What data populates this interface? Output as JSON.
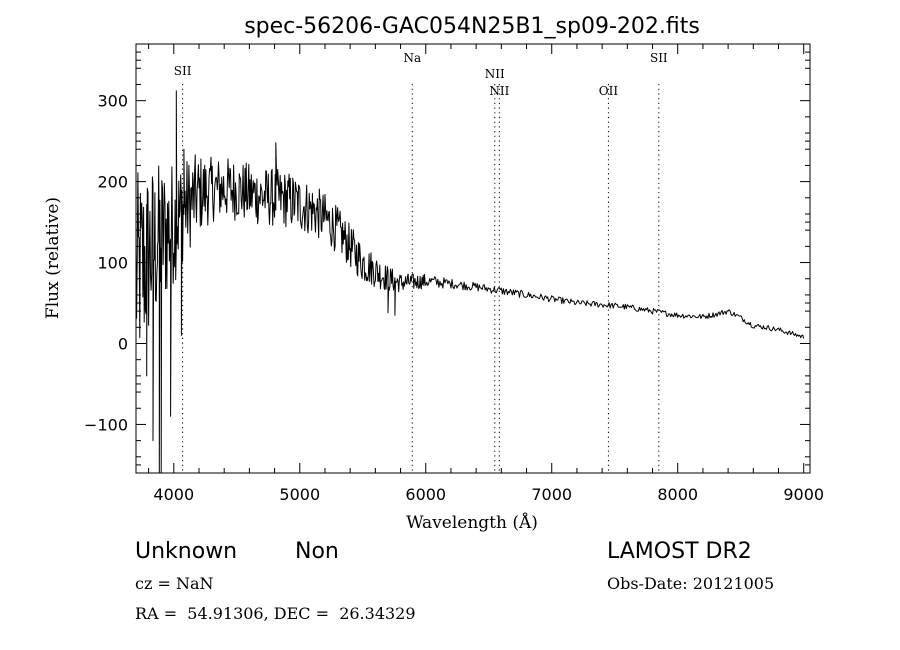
{
  "chart_data": {
    "type": "line",
    "title": "spec-56206-GAC054N25B1_sp09-202.fits",
    "xlabel": "Wavelength (Å)",
    "ylabel": "Flux (relative)",
    "xlim": [
      3700,
      9050
    ],
    "ylim": [
      -160,
      370
    ],
    "x_ticks": [
      4000,
      5000,
      6000,
      7000,
      8000,
      9000
    ],
    "y_ticks": [
      -100,
      0,
      100,
      200,
      300
    ],
    "grid": false,
    "lines": [
      {
        "label": "SII",
        "x": 4070
      },
      {
        "label": "Na",
        "x": 5893
      },
      {
        "label": "NII",
        "x": 6548
      },
      {
        "label": "NII",
        "x": 6584
      },
      {
        "label": "OII",
        "x": 7450
      },
      {
        "label": "SII",
        "x": 7850
      }
    ],
    "spectrum": {
      "name": "flux",
      "anchor_x": [
        3700,
        3800,
        3900,
        4000,
        4100,
        4200,
        4300,
        4400,
        4500,
        4600,
        4700,
        4800,
        4900,
        5000,
        5100,
        5200,
        5300,
        5400,
        5500,
        5600,
        5700,
        5800,
        5900,
        6000,
        6200,
        6400,
        6600,
        6800,
        7000,
        7200,
        7400,
        7600,
        7800,
        8000,
        8200,
        8300,
        8400,
        8500,
        8600,
        8700,
        8800,
        9000
      ],
      "anchor_y": [
        80,
        110,
        130,
        150,
        170,
        185,
        190,
        192,
        190,
        185,
        182,
        180,
        178,
        172,
        165,
        155,
        140,
        120,
        100,
        90,
        80,
        75,
        76,
        77,
        74,
        70,
        65,
        60,
        55,
        50,
        48,
        45,
        40,
        35,
        33,
        36,
        40,
        32,
        22,
        20,
        17,
        8
      ],
      "noise": [
        [
          3700,
          130
        ],
        [
          4100,
          60
        ],
        [
          4300,
          40
        ],
        [
          5000,
          35
        ],
        [
          5500,
          25
        ],
        [
          5800,
          12
        ],
        [
          6200,
          6
        ],
        [
          7000,
          4
        ],
        [
          9000,
          3
        ]
      ],
      "spikes": [
        [
          3785,
          -40
        ],
        [
          3835,
          -120
        ],
        [
          3870,
          120
        ],
        [
          3885,
          -160
        ],
        [
          3900,
          -160
        ],
        [
          3920,
          160
        ],
        [
          3975,
          -90
        ],
        [
          4020,
          312
        ],
        [
          4060,
          10
        ],
        [
          4080,
          240
        ],
        [
          4810,
          248
        ],
        [
          5700,
          38
        ],
        [
          5755,
          35
        ]
      ]
    }
  },
  "footer": {
    "object_type": "Unknown",
    "subclass": "Non",
    "survey": "LAMOST DR2",
    "cz": "cz = NaN",
    "obs_date": "Obs-Date: 20121005",
    "coords": "RA =  54.91306, DEC =  26.34329"
  }
}
